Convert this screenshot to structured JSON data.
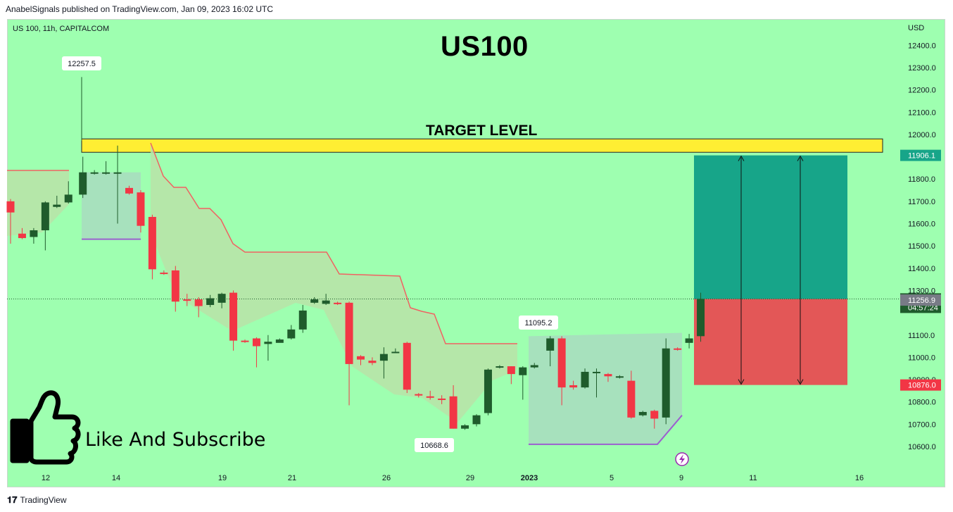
{
  "header": {
    "published": "AnabelSignals published on TradingView.com, Jan 09, 2023 16:02 UTC"
  },
  "footer": {
    "brand": "TradingView",
    "logo_icon": "tradingview-logo-icon"
  },
  "chart_meta": {
    "symbol_line": "US 100, 11h, CAPITALCOM",
    "currency": "USD",
    "title": "US100",
    "target_text": "TARGET LEVEL",
    "like_text": "Like And Subscribe",
    "thumbs_icon": "thumbs-up-icon",
    "lightning_icon": "lightning-icon"
  },
  "colors": {
    "background": "#9effb0",
    "bull": "#1f5c2c",
    "bear": "#f23645",
    "stop_line": "#f06262",
    "profit_zone": "#17a589",
    "loss_zone": "#e35757",
    "target_band": "#ffee33",
    "support_line": "#9c5fcf"
  },
  "chart_data": {
    "type": "candlestick",
    "x_tick_labels": [
      "12",
      "14",
      "19",
      "21",
      "26",
      "29",
      "2023",
      "5",
      "9",
      "11",
      "16"
    ],
    "y_tick_labels": [
      "12400.0",
      "12300.0",
      "12200.0",
      "12100.0",
      "12000.0",
      "11800.0",
      "11700.0",
      "11600.0",
      "11500.0",
      "11400.0",
      "11300.0",
      "11100.0",
      "11000.0",
      "10900.0",
      "10800.0",
      "10700.0",
      "10600.0"
    ],
    "ylim": [
      10540,
      12500
    ],
    "annotations": [
      {
        "text": "12257.5",
        "value": 12257.5
      },
      {
        "text": "11095.2",
        "value": 11095.2
      },
      {
        "text": "10668.6",
        "value": 10668.6
      }
    ],
    "price_tags": [
      {
        "text": "11906.1",
        "value": 11906.1,
        "color": "#17a589"
      },
      {
        "text": "11262.1",
        "sub": "04:57:24",
        "value": 11262.1,
        "color": "#1f5c2c"
      },
      {
        "text": "11256.9",
        "value": 11256.9,
        "color": "#787b86"
      },
      {
        "text": "10876.0",
        "value": 10876.0,
        "color": "#f23645"
      }
    ],
    "target_band": [
      11920,
      11980
    ],
    "position": {
      "entry": 11262.1,
      "take_profit": 11906.1,
      "stop": 10876.0
    },
    "candles": [
      [
        11700,
        11650,
        11710,
        11510
      ],
      [
        11555,
        11535,
        11580,
        11530
      ],
      [
        11540,
        11570,
        11580,
        11510
      ],
      [
        11570,
        11695,
        11700,
        11480
      ],
      [
        11675,
        11685,
        11725,
        11670
      ],
      [
        11695,
        11730,
        11790,
        11690
      ],
      [
        11730,
        11830,
        11900,
        11715
      ],
      [
        11830,
        11830,
        11840,
        11820
      ],
      [
        11830,
        11830,
        11880,
        11820
      ],
      [
        11830,
        11830,
        11950,
        11600
      ],
      [
        11760,
        11735,
        11770,
        11730
      ],
      [
        11740,
        11590,
        11750,
        11560
      ],
      [
        11630,
        11395,
        11640,
        11350
      ],
      [
        11380,
        11375,
        11390,
        11370
      ],
      [
        11390,
        11250,
        11410,
        11205
      ],
      [
        11260,
        11255,
        11285,
        11230
      ],
      [
        11260,
        11230,
        11270,
        11180
      ],
      [
        11235,
        11265,
        11280,
        11225
      ],
      [
        11245,
        11285,
        11290,
        11220
      ],
      [
        11290,
        11075,
        11300,
        11030
      ],
      [
        11075,
        11070,
        11080,
        11065
      ],
      [
        11085,
        11050,
        11090,
        10955
      ],
      [
        11060,
        11070,
        11100,
        10985
      ],
      [
        11065,
        11080,
        11085,
        11070
      ],
      [
        11085,
        11125,
        11145,
        11080
      ],
      [
        11125,
        11210,
        11235,
        11110
      ],
      [
        11245,
        11260,
        11270,
        11240
      ],
      [
        11240,
        11255,
        11285,
        11235
      ],
      [
        11245,
        11240,
        11250,
        11235
      ],
      [
        11245,
        10970,
        11250,
        10785
      ],
      [
        11005,
        10990,
        11010,
        10965
      ],
      [
        10985,
        10975,
        11000,
        10965
      ],
      [
        10985,
        11015,
        11045,
        10905
      ],
      [
        11020,
        11025,
        11040,
        11020
      ],
      [
        11065,
        10855,
        11070,
        10840
      ],
      [
        10835,
        10830,
        10840,
        10820
      ],
      [
        10825,
        10820,
        10850,
        10810
      ],
      [
        10815,
        10810,
        10830,
        10790
      ],
      [
        10825,
        10680,
        10875,
        10680
      ],
      [
        10680,
        10695,
        10700,
        10675
      ],
      [
        10700,
        10740,
        10745,
        10690
      ],
      [
        10750,
        10945,
        10950,
        10740
      ],
      [
        10955,
        10960,
        10965,
        10950
      ],
      [
        10960,
        10925,
        10960,
        10880
      ],
      [
        10920,
        10955,
        10960,
        10810
      ],
      [
        10955,
        10965,
        10975,
        10950
      ],
      [
        11030,
        11085,
        11095,
        10960
      ],
      [
        11085,
        10865,
        11095,
        10785
      ],
      [
        10875,
        10865,
        10895,
        10855
      ],
      [
        10865,
        10935,
        10950,
        10860
      ],
      [
        10935,
        10935,
        10950,
        10820
      ],
      [
        10925,
        10915,
        10930,
        10890
      ],
      [
        10915,
        10915,
        10920,
        10905
      ],
      [
        10895,
        10730,
        10940,
        10725
      ],
      [
        10740,
        10755,
        10760,
        10735
      ],
      [
        10760,
        10725,
        10765,
        10680
      ],
      [
        10730,
        11040,
        11085,
        10700
      ],
      [
        11040,
        11035,
        11045,
        11030
      ],
      [
        11065,
        11085,
        11105,
        11040
      ],
      [
        11095,
        11262,
        11290,
        11070
      ]
    ],
    "stop_line_path": [
      [
        11840,
        11840
      ],
      [
        11980,
        11810,
        11760,
        11760,
        11670,
        11670,
        11600,
        11510,
        11480,
        11480,
        11480,
        11380,
        11320,
        11320,
        11320,
        11320,
        11320,
        11320,
        11320,
        11220,
        11200,
        11170,
        11070,
        11070,
        11070,
        11070,
        11070
      ]
    ],
    "support_level_left": 11530,
    "support_level_right": 10610
  }
}
